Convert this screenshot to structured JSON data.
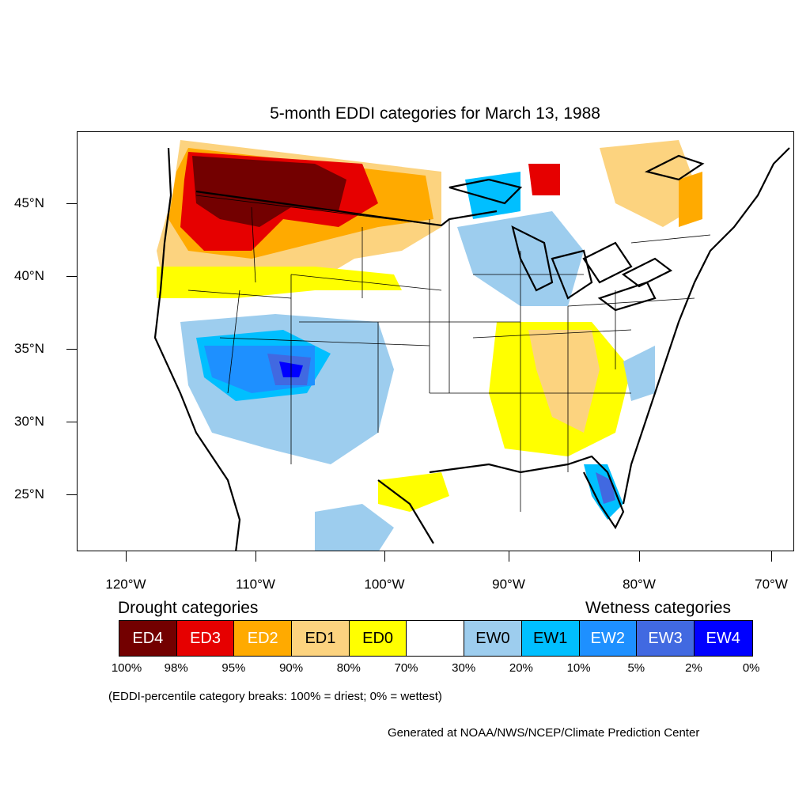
{
  "title": "5-month EDDI categories for March 13, 1988",
  "lat_labels": [
    "45°N",
    "40°N",
    "35°N",
    "30°N",
    "25°N"
  ],
  "lon_labels": [
    "120°W",
    "110°W",
    "100°W",
    "90°W",
    "80°W",
    "70°W"
  ],
  "legend": {
    "drought_heading": "Drought categories",
    "wetness_heading": "Wetness categories",
    "categories": [
      {
        "label": "ED4",
        "color": "#730000",
        "text_color": "#ffffff"
      },
      {
        "label": "ED3",
        "color": "#e60000",
        "text_color": "#ffffff"
      },
      {
        "label": "ED2",
        "color": "#ffaa00",
        "text_color": "#ffffff"
      },
      {
        "label": "ED1",
        "color": "#fcd37f",
        "text_color": "#000000"
      },
      {
        "label": "ED0",
        "color": "#ffff00",
        "text_color": "#000000"
      },
      {
        "label": "",
        "color": "#ffffff",
        "text_color": "#000000"
      },
      {
        "label": "EW0",
        "color": "#9dcdee",
        "text_color": "#000000"
      },
      {
        "label": "EW1",
        "color": "#00bfff",
        "text_color": "#000000"
      },
      {
        "label": "EW2",
        "color": "#1e90ff",
        "text_color": "#ffffff"
      },
      {
        "label": "EW3",
        "color": "#4169e1",
        "text_color": "#ffffff"
      },
      {
        "label": "EW4",
        "color": "#0000ff",
        "text_color": "#ffffff"
      }
    ],
    "percent_breaks": [
      "100%",
      "98%",
      "95%",
      "90%",
      "80%",
      "70%",
      "30%",
      "20%",
      "10%",
      "5%",
      "2%",
      "0%"
    ]
  },
  "note": "(EDDI-percentile category breaks: 100% = driest; 0% = wettest)",
  "credit": "Generated at NOAA/NWS/NCEP/Climate Prediction Center"
}
